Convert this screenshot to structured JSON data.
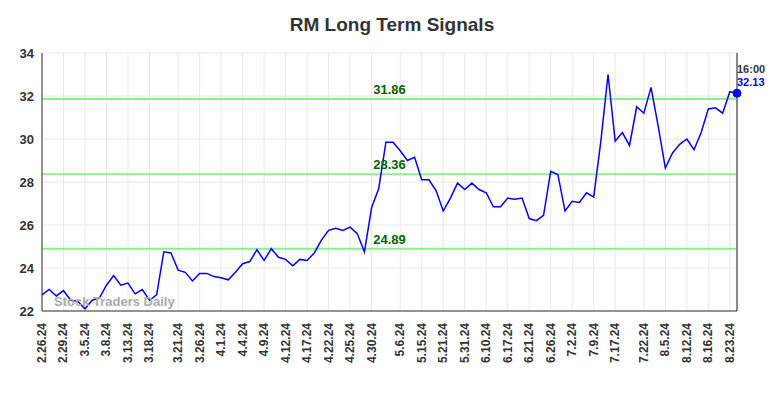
{
  "chart_data": {
    "type": "line",
    "title": "RM Long Term Signals",
    "categories": [
      "2.26.24",
      null,
      null,
      "2.29.24",
      null,
      null,
      "3.5.24",
      null,
      null,
      "3.8.24",
      null,
      null,
      "3.13.24",
      null,
      null,
      "3.18.24",
      null,
      null,
      null,
      "3.21.24",
      null,
      null,
      "3.26.24",
      null,
      null,
      "4.1.24",
      null,
      null,
      "4.4.24",
      null,
      null,
      "4.9.24",
      null,
      null,
      "4.12.24",
      null,
      null,
      "4.17.24",
      null,
      null,
      "4.22.24",
      null,
      null,
      "4.25.24",
      null,
      null,
      "4.30.24",
      null,
      null,
      null,
      "5.6.24",
      null,
      null,
      "5.15.24",
      null,
      null,
      "5.21.24",
      null,
      null,
      "5.31.24",
      null,
      null,
      "6.10.24",
      null,
      null,
      "6.17.24",
      null,
      null,
      "6.21.24",
      null,
      null,
      "6.26.24",
      null,
      null,
      "7.2.24",
      null,
      null,
      "7.9.24",
      null,
      null,
      "7.17.24",
      null,
      null,
      null,
      "7.22.24",
      null,
      null,
      "8.5.24",
      null,
      null,
      "8.12.24",
      null,
      null,
      "8.16.24",
      null,
      null,
      "8.23.24",
      null
    ],
    "values": [
      22.75,
      23.0,
      22.7,
      22.95,
      22.5,
      22.45,
      22.1,
      22.5,
      22.6,
      23.2,
      23.65,
      23.2,
      23.3,
      22.8,
      23.0,
      22.5,
      22.75,
      24.75,
      24.7,
      23.9,
      23.8,
      23.4,
      23.75,
      23.75,
      23.6,
      23.55,
      23.45,
      23.8,
      24.2,
      24.3,
      24.85,
      24.35,
      24.9,
      24.5,
      24.4,
      24.1,
      24.4,
      24.35,
      24.7,
      25.3,
      25.75,
      25.85,
      25.75,
      25.9,
      25.6,
      24.75,
      26.8,
      27.7,
      29.85,
      29.85,
      29.45,
      29.0,
      29.15,
      28.1,
      28.1,
      27.6,
      26.65,
      27.25,
      27.95,
      27.65,
      27.95,
      27.65,
      27.5,
      26.85,
      26.85,
      27.25,
      27.2,
      27.25,
      26.3,
      26.2,
      26.45,
      28.5,
      28.35,
      26.65,
      27.1,
      27.05,
      27.5,
      27.3,
      29.9,
      33.0,
      29.9,
      30.3,
      29.7,
      31.5,
      31.2,
      32.4,
      30.6,
      28.65,
      29.35,
      29.75,
      30.0,
      29.5,
      30.3,
      31.4,
      31.45,
      31.2,
      32.2,
      32.13
    ],
    "color": "#0000ff",
    "ylim": [
      22,
      34
    ],
    "yticks": [
      22,
      24,
      26,
      28,
      30,
      32,
      34
    ],
    "grid": true,
    "levels": [
      31.86,
      28.36,
      24.89
    ],
    "level_color": "#90ee90",
    "last_value": 32.13,
    "time_label": "16:00",
    "watermark": "Stock Traders Daily"
  }
}
